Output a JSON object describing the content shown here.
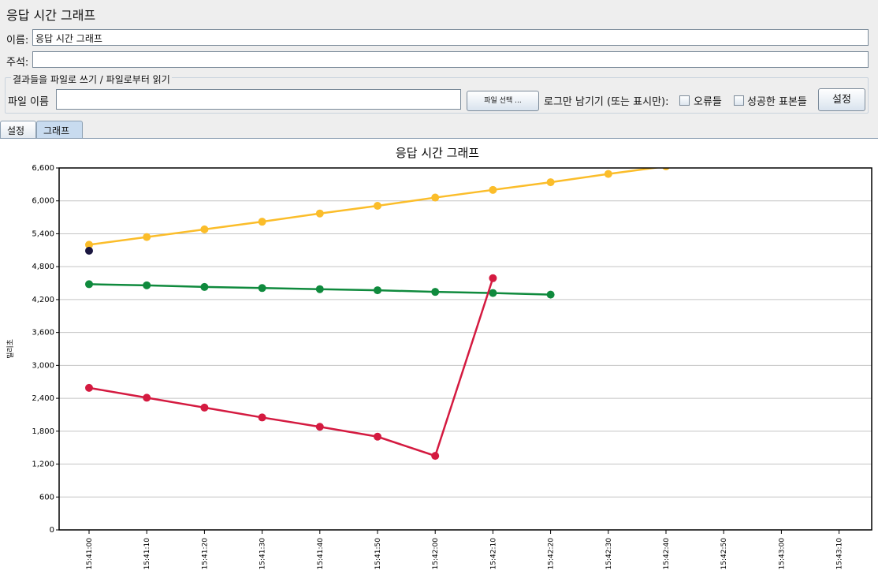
{
  "window": {
    "title": "응답 시간 그래프"
  },
  "form": {
    "name_label": "이름:",
    "name_value": "응답 시간 그래프",
    "comment_label": "주석:",
    "comment_value": "",
    "file_group_legend": "결과들을 파일로 쓰기 / 파일로부터 읽기",
    "filename_label": "파일 이름",
    "filename_value": "",
    "browse_button": "파일 선택 ...",
    "log_only_label": "로그만 남기기 (또는 표시만):",
    "errors_label": "오류들",
    "errors_checked": false,
    "successes_label": "성공한 표본들",
    "successes_checked": false,
    "configure_button": "설정"
  },
  "tabs": [
    {
      "label": "설정",
      "active": false
    },
    {
      "label": "그래프",
      "active": true
    }
  ],
  "chart_data": {
    "type": "line",
    "title": "응답 시간 그래프",
    "xlabel": "",
    "ylabel": "밀리초",
    "ylim": [
      0,
      6600
    ],
    "yticks": [
      0,
      600,
      1200,
      1800,
      2400,
      3000,
      3600,
      4200,
      4800,
      5400,
      6000,
      6600
    ],
    "ytick_labels": [
      "0",
      "600",
      "1,200",
      "1,800",
      "2,400",
      "3,000",
      "3,600",
      "4,200",
      "4,800",
      "5,400",
      "6,000",
      "6,600"
    ],
    "x_ticks": [
      "15:41:00",
      "15:41:10",
      "15:41:20",
      "15:41:30",
      "15:41:40",
      "15:41:50",
      "15:42:00",
      "15:42:10",
      "15:42:20",
      "15:42:30",
      "15:42:40",
      "15:42:50",
      "15:43:00",
      "15:43:10"
    ],
    "grid": true,
    "series": [
      {
        "color": "#fbbd2a",
        "x": [
          "15:41:00",
          "15:41:10",
          "15:41:20",
          "15:41:30",
          "15:41:40",
          "15:41:50",
          "15:42:00",
          "15:42:10",
          "15:42:20",
          "15:42:30",
          "15:42:40"
        ],
        "values": [
          5200,
          5340,
          5480,
          5620,
          5770,
          5910,
          6060,
          6200,
          6340,
          6490,
          6630
        ]
      },
      {
        "color": "#0f8a3d",
        "x": [
          "15:41:00",
          "15:41:10",
          "15:41:20",
          "15:41:30",
          "15:41:40",
          "15:41:50",
          "15:42:00",
          "15:42:10",
          "15:42:20"
        ],
        "values": [
          4480,
          4460,
          4430,
          4410,
          4390,
          4370,
          4340,
          4320,
          4290
        ]
      },
      {
        "color": "#d41a40",
        "x": [
          "15:41:00",
          "15:41:10",
          "15:41:20",
          "15:41:30",
          "15:41:40",
          "15:41:50",
          "15:42:00",
          "15:42:10"
        ],
        "values": [
          2590,
          2410,
          2230,
          2050,
          1880,
          1700,
          1350,
          4590
        ]
      },
      {
        "color": "#1b1740",
        "x": [
          "15:41:00"
        ],
        "values": [
          5090
        ]
      }
    ]
  }
}
